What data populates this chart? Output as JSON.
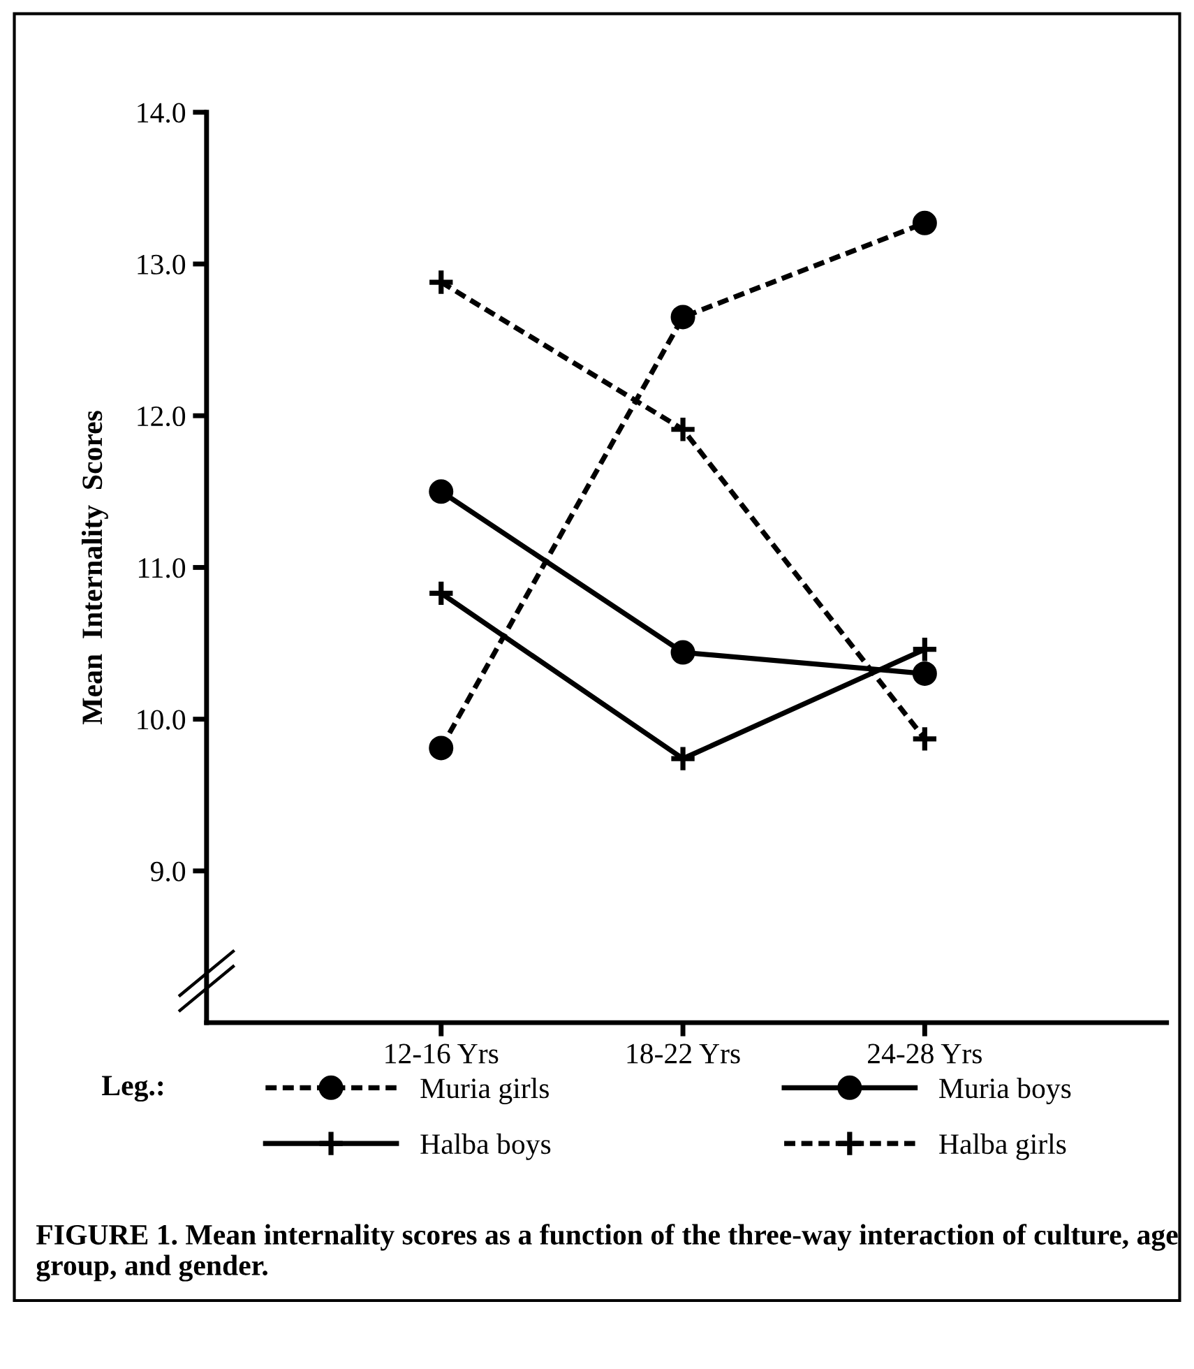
{
  "chart_data": {
    "type": "line",
    "ylabel": "Mean  Internality  Scores",
    "categories": [
      "12-16 Yrs",
      "18-22 Yrs",
      "24-28 Yrs"
    ],
    "series": [
      {
        "name": "Muria girls",
        "color": "#000000",
        "values": [
          9.81,
          12.65,
          13.27
        ],
        "marker": "circle",
        "line_style": "dashed"
      },
      {
        "name": "Muria boys",
        "color": "#000000",
        "values": [
          11.5,
          10.44,
          10.3
        ],
        "marker": "circle",
        "line_style": "solid"
      },
      {
        "name": "Halba boys",
        "color": "#000000",
        "values": [
          10.83,
          9.74,
          10.46
        ],
        "marker": "cross",
        "line_style": "solid"
      },
      {
        "name": "Halba girls",
        "color": "#000000",
        "values": [
          12.88,
          11.91,
          9.87
        ],
        "marker": "cross",
        "line_style": "dashed"
      }
    ],
    "ylim": [
      8.0,
      14.0
    ],
    "yticks": [
      {
        "value": 9,
        "label": "9.0"
      },
      {
        "value": 10,
        "label": "10.0"
      },
      {
        "value": 11,
        "label": "11.0"
      },
      {
        "value": 12,
        "label": "12.0"
      },
      {
        "value": 13,
        "label": "13.0"
      },
      {
        "value": 14,
        "label": "14.0"
      }
    ],
    "grid": false,
    "legend": "bottom",
    "legend_title": "Leg.:",
    "annotations": [
      "FIGURE 1. Mean internality scores as a function of the three-way interaction of culture, age group, and gender."
    ]
  }
}
